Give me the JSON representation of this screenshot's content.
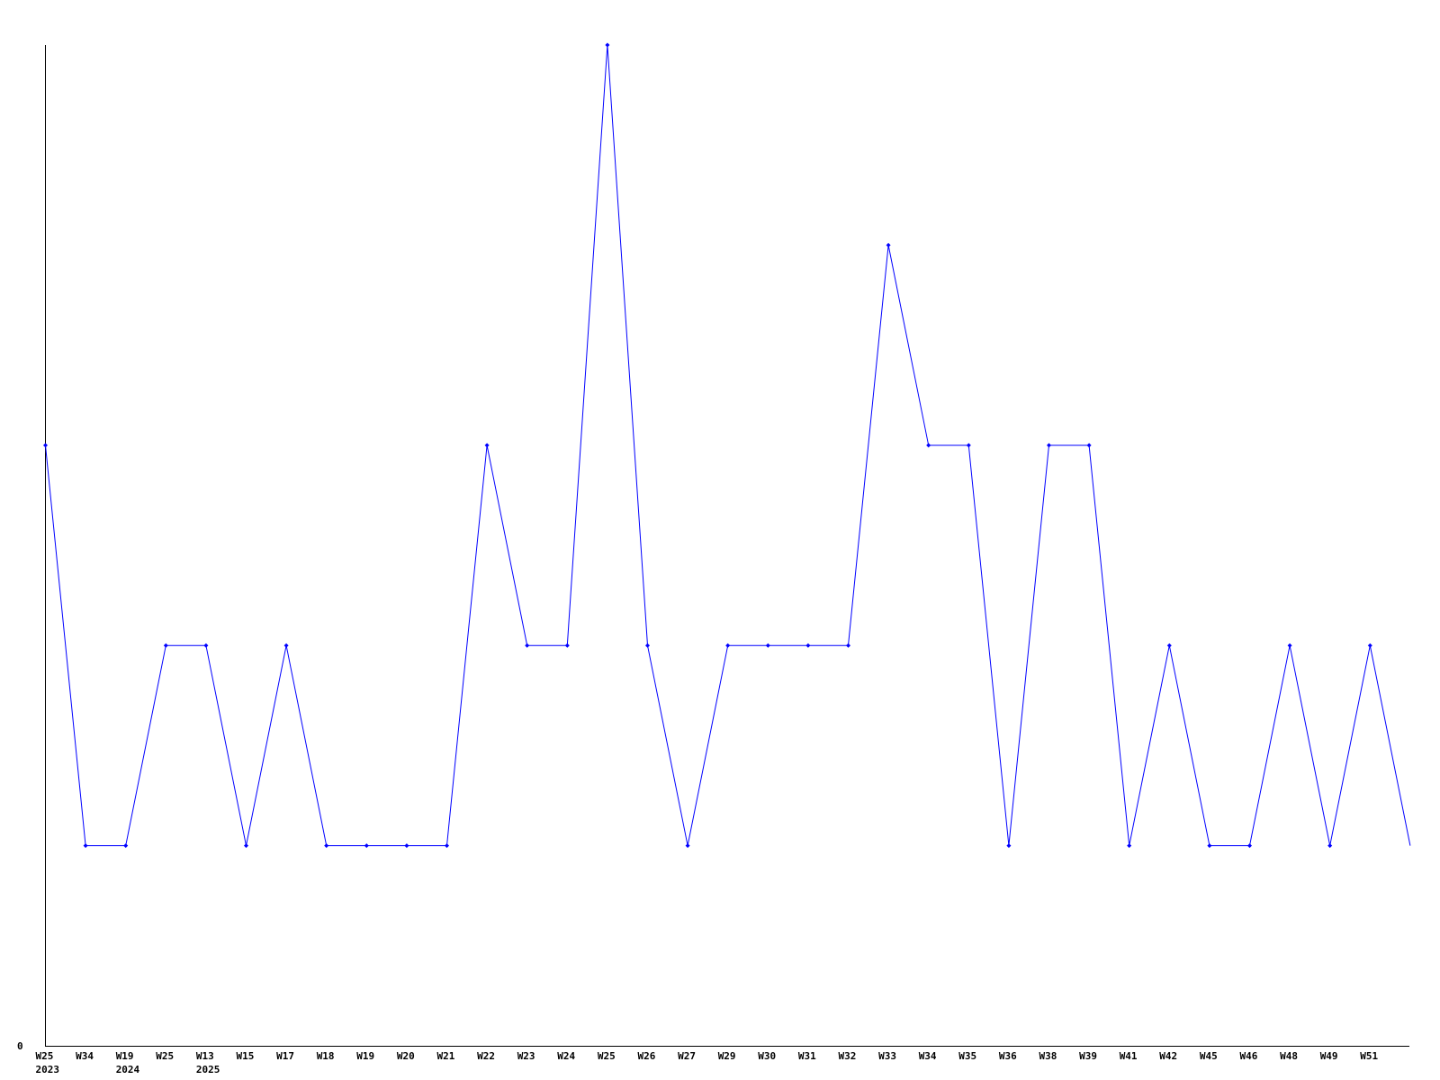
{
  "chart_data": {
    "type": "line",
    "title": "",
    "xlabel": "",
    "ylabel": "",
    "ylim": [
      0,
      5
    ],
    "y_tick_labels": [
      "0"
    ],
    "grid": false,
    "line_color": "#0000ff",
    "categories": [
      "W25",
      "W34",
      "W19",
      "W25",
      "W13",
      "W15",
      "W17",
      "W18",
      "W19",
      "W20",
      "W21",
      "W22",
      "W23",
      "W24",
      "W25",
      "W26",
      "W27",
      "W29",
      "W30",
      "W31",
      "W32",
      "W33",
      "W34",
      "W35",
      "W36",
      "W38",
      "W39",
      "W41",
      "W42",
      "W45",
      "W46",
      "W48",
      "W49",
      "W51",
      ""
    ],
    "year_labels": {
      "0": "2023",
      "2": "2024",
      "4": "2025"
    },
    "values": [
      3,
      1,
      1,
      2,
      2,
      1,
      2,
      1,
      1,
      1,
      1,
      3,
      2,
      2,
      5,
      2,
      1,
      2,
      2,
      2,
      2,
      4,
      3,
      3,
      1,
      3,
      3,
      1,
      2,
      1,
      1,
      2,
      1,
      2,
      1
    ]
  }
}
